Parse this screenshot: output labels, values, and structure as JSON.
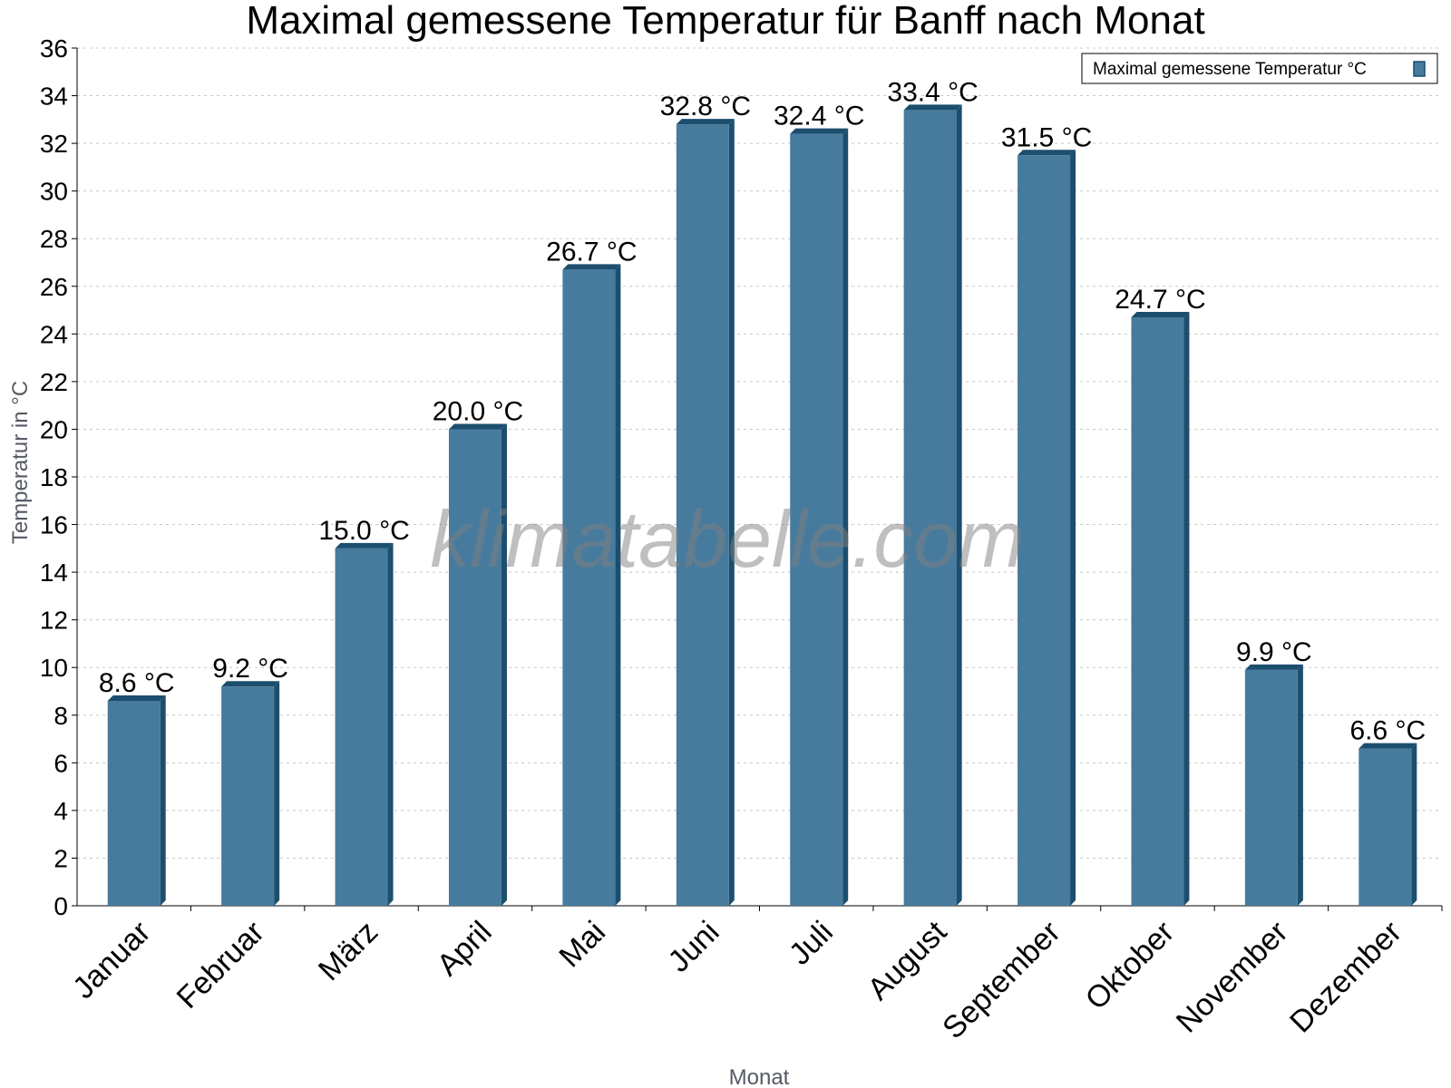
{
  "chart_data": {
    "type": "bar",
    "title": "Maximal gemessene Temperatur für Banff nach Monat",
    "xlabel": "Monat",
    "ylabel": "Temperatur in °C",
    "ylim": [
      0,
      36
    ],
    "ytick_step": 2,
    "grid": true,
    "legend_position": "top-right",
    "categories": [
      "Januar",
      "Februar",
      "März",
      "April",
      "Mai",
      "Juni",
      "Juli",
      "August",
      "September",
      "Oktober",
      "November",
      "Dezember"
    ],
    "series": [
      {
        "name": "Maximal gemessene Temperatur °C",
        "values": [
          8.6,
          9.2,
          15.0,
          20.0,
          26.7,
          32.8,
          32.4,
          33.4,
          31.5,
          24.7,
          9.9,
          6.6
        ],
        "value_suffix": " °C",
        "color": "#477b9d",
        "shade_color": "#1c4e6e"
      }
    ]
  },
  "watermark": "klimatabelle.com"
}
